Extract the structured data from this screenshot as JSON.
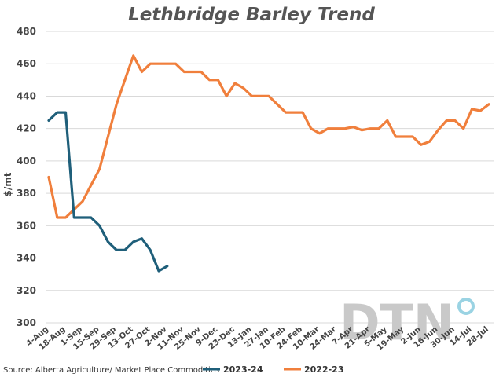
{
  "chart_data": {
    "type": "line",
    "title": "Lethbridge Barley Trend",
    "ylabel": "$/mt",
    "ylim": [
      300,
      480
    ],
    "yticks": [
      300,
      320,
      340,
      360,
      380,
      400,
      420,
      440,
      460,
      480
    ],
    "grid": true,
    "x_tick_labels": [
      "4-Aug",
      "18-Aug",
      "1-Sep",
      "15-Sep",
      "29-Sep",
      "13-Oct",
      "27-Oct",
      "2-Nov",
      "11-Nov",
      "25-Nov",
      "9-Dec",
      "23-Dec",
      "13-Jan",
      "27-Jan",
      "10-Feb",
      "24-Feb",
      "10-Mar",
      "24-Mar",
      "7-Apr",
      "21-Apr",
      "5-May",
      "19-May",
      "2-Jun",
      "16-Jun",
      "30-Jun",
      "14-Jul",
      "28-Jul"
    ],
    "legend_position": "bottom",
    "source": "Source: Alberta Agriculture/ Market Place Commodities",
    "watermark": "DTN",
    "series": [
      {
        "name": "2023-24",
        "color": "#1f5f7a",
        "values": [
          425,
          430,
          430,
          365,
          365,
          365,
          360,
          350,
          345,
          345,
          350,
          352,
          345,
          332,
          335
        ]
      },
      {
        "name": "2022-23",
        "color": "#f07f3c",
        "values": [
          390,
          365,
          365,
          370,
          375,
          385,
          395,
          415,
          435,
          450,
          465,
          455,
          460,
          460,
          460,
          460,
          455,
          455,
          455,
          450,
          450,
          440,
          448,
          445,
          440,
          440,
          440,
          435,
          430,
          430,
          430,
          420,
          417,
          420,
          420,
          420,
          421,
          419,
          420,
          420,
          425,
          415,
          415,
          415,
          410,
          412,
          419,
          425,
          425,
          420,
          432,
          431,
          435
        ]
      }
    ]
  }
}
